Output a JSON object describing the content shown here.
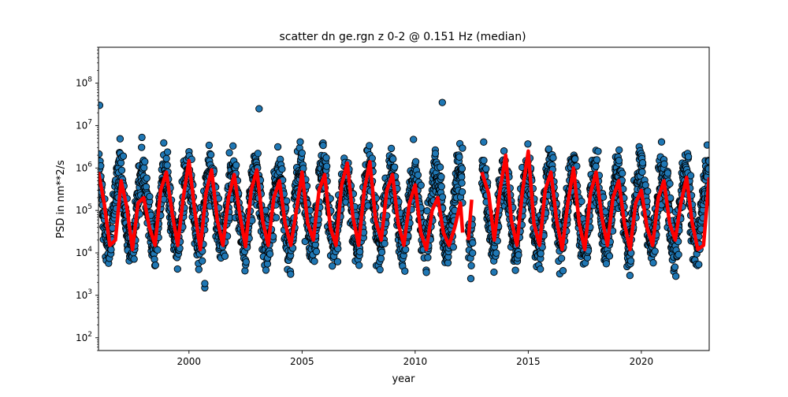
{
  "chart_data": {
    "type": "scatter",
    "title": "scatter dn ge.rgn z 0-2 @ 0.151 Hz (median)",
    "xlabel": "year",
    "ylabel": "PSD in nm**2/s",
    "xlim": [
      1996.0,
      2023.0
    ],
    "ylim": [
      50,
      700000000
    ],
    "yscale": "log",
    "x_ticks": [
      2000,
      2005,
      2010,
      2015,
      2020
    ],
    "x_tick_labels": [
      "2000",
      "2005",
      "2010",
      "2015",
      "2020"
    ],
    "y_ticks": [
      100,
      1000,
      10000,
      100000,
      1000000,
      10000000,
      100000000
    ],
    "y_tick_labels": [
      {
        "base": "10",
        "exp": "2"
      },
      {
        "base": "10",
        "exp": "3"
      },
      {
        "base": "10",
        "exp": "4"
      },
      {
        "base": "10",
        "exp": "5"
      },
      {
        "base": "10",
        "exp": "6"
      },
      {
        "base": "10",
        "exp": "7"
      },
      {
        "base": "10",
        "exp": "8"
      }
    ],
    "grid": false,
    "series": [
      {
        "type": "scatter",
        "color": "#1f77b4",
        "edgecolor": "#000000",
        "seasonal_profile": {
          "period_years": 1.0,
          "peak_phase_year_fraction": 0.95,
          "summer_median": 15000,
          "winter_median": 800000,
          "spread_log10": 0.55,
          "samples_per_year": 120
        },
        "data_gap": [
          [
            2012.1,
            2012.35
          ],
          [
            2012.55,
            2012.95
          ]
        ],
        "notable_points": [
          {
            "x": 2000.7,
            "y": 1500
          },
          {
            "x": 2000.7,
            "y": 1900
          },
          {
            "x": 1996.05,
            "y": 30000000
          },
          {
            "x": 2011.2,
            "y": 35000000
          },
          {
            "x": 2003.1,
            "y": 25000000
          }
        ]
      },
      {
        "type": "line",
        "color": "#ff0000",
        "x": [
          1996.0,
          1996.25,
          1996.5,
          1996.75,
          1997.0,
          1997.25,
          1997.5,
          1997.75,
          1998.0,
          1998.25,
          1998.5,
          1998.75,
          1999.0,
          1999.25,
          1999.5,
          1999.75,
          2000.0,
          2000.25,
          2000.5,
          2000.75,
          2001.0,
          2001.25,
          2001.5,
          2001.75,
          2002.0,
          2002.25,
          2002.5,
          2002.75,
          2003.0,
          2003.25,
          2003.5,
          2003.75,
          2004.0,
          2004.25,
          2004.5,
          2004.75,
          2005.0,
          2005.25,
          2005.5,
          2005.75,
          2006.0,
          2006.25,
          2006.5,
          2006.75,
          2007.0,
          2007.25,
          2007.5,
          2007.75,
          2008.0,
          2008.25,
          2008.5,
          2008.75,
          2009.0,
          2009.25,
          2009.5,
          2009.75,
          2010.0,
          2010.25,
          2010.5,
          2010.75,
          2011.0,
          2011.25,
          2011.5,
          2011.75,
          2012.0,
          2012.1,
          null,
          2012.35,
          2012.5,
          null,
          2012.95,
          2013.25,
          2013.5,
          2013.75,
          2014.0,
          2014.25,
          2014.5,
          2014.75,
          2015.0,
          2015.25,
          2015.5,
          2015.75,
          2016.0,
          2016.25,
          2016.5,
          2016.75,
          2017.0,
          2017.25,
          2017.5,
          2017.75,
          2018.0,
          2018.25,
          2018.5,
          2018.75,
          2019.0,
          2019.25,
          2019.5,
          2019.75,
          2020.0,
          2020.25,
          2020.5,
          2020.75,
          2021.0,
          2021.25,
          2021.5,
          2021.75,
          2022.0,
          2022.25,
          2022.5,
          2022.75,
          2023.0
        ],
        "y": [
          800000,
          150000,
          15000,
          20000,
          500000,
          120000,
          12000,
          150000,
          200000,
          40000,
          15000,
          300000,
          800000,
          90000,
          15000,
          200000,
          1500000,
          100000,
          12000,
          250000,
          900000,
          60000,
          15000,
          200000,
          700000,
          80000,
          14000,
          300000,
          900000,
          60000,
          15000,
          200000,
          500000,
          50000,
          15000,
          100000,
          800000,
          50000,
          20000,
          300000,
          700000,
          40000,
          15000,
          400000,
          1300000,
          70000,
          15000,
          300000,
          1400000,
          60000,
          20000,
          300000,
          700000,
          50000,
          15000,
          150000,
          400000,
          30000,
          12000,
          100000,
          200000,
          30000,
          15000,
          40000,
          150000,
          30000,
          null,
          20000,
          180000,
          null,
          800000,
          250000,
          20000,
          300000,
          2000000,
          60000,
          15000,
          300000,
          2500000,
          50000,
          15000,
          300000,
          800000,
          60000,
          12000,
          150000,
          1000000,
          50000,
          12000,
          250000,
          800000,
          70000,
          15000,
          200000,
          500000,
          50000,
          12000,
          150000,
          300000,
          40000,
          15000,
          200000,
          500000,
          50000,
          20000,
          150000,
          600000,
          50000,
          12000,
          15000,
          600000
        ]
      }
    ]
  }
}
